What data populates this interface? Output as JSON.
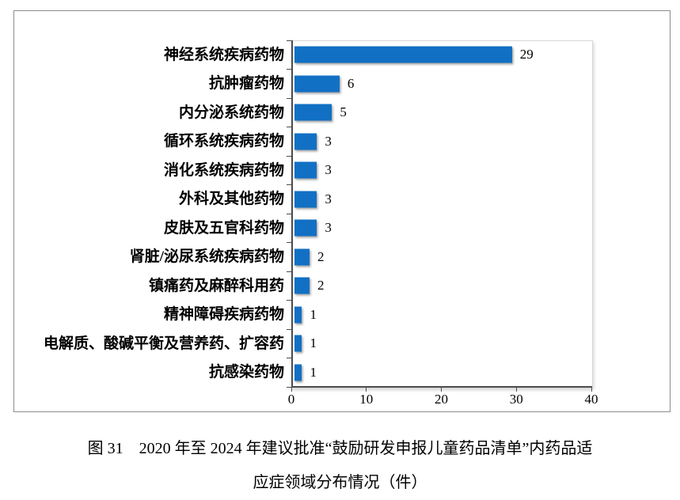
{
  "chart_data": {
    "type": "bar",
    "orientation": "horizontal",
    "title": "",
    "xlabel": "",
    "ylabel": "",
    "categories": [
      "神经系统疾病药物",
      "抗肿瘤药物",
      "内分泌系统药物",
      "循环系统疾病药物",
      "消化系统疾病药物",
      "外科及其他药物",
      "皮肤及五官科药物",
      "肾脏/泌尿系统疾病药物",
      "镇痛药及麻醉科用药",
      "精神障碍疾病药物",
      "电解质、酸碱平衡及营养药、扩容药",
      "抗感染药物"
    ],
    "values": [
      29,
      6,
      5,
      3,
      3,
      3,
      3,
      2,
      2,
      1,
      1,
      1
    ],
    "data_labels_shown": true,
    "xlim": [
      0,
      40
    ],
    "x_ticks": [
      0,
      10,
      20,
      30,
      40
    ],
    "grid": false,
    "legend_position": "none",
    "bar_color": "#1170c4",
    "axis_color": "#4d4d4d",
    "frame_border_color": "#8c8c8c",
    "plot_border_color": "#d9d9d9"
  },
  "caption": {
    "line1": "图 31　2020 年至 2024 年建议批准“鼓励研发申报儿童药品清单”内药品适",
    "line2": "应症领域分布情况（件）"
  }
}
